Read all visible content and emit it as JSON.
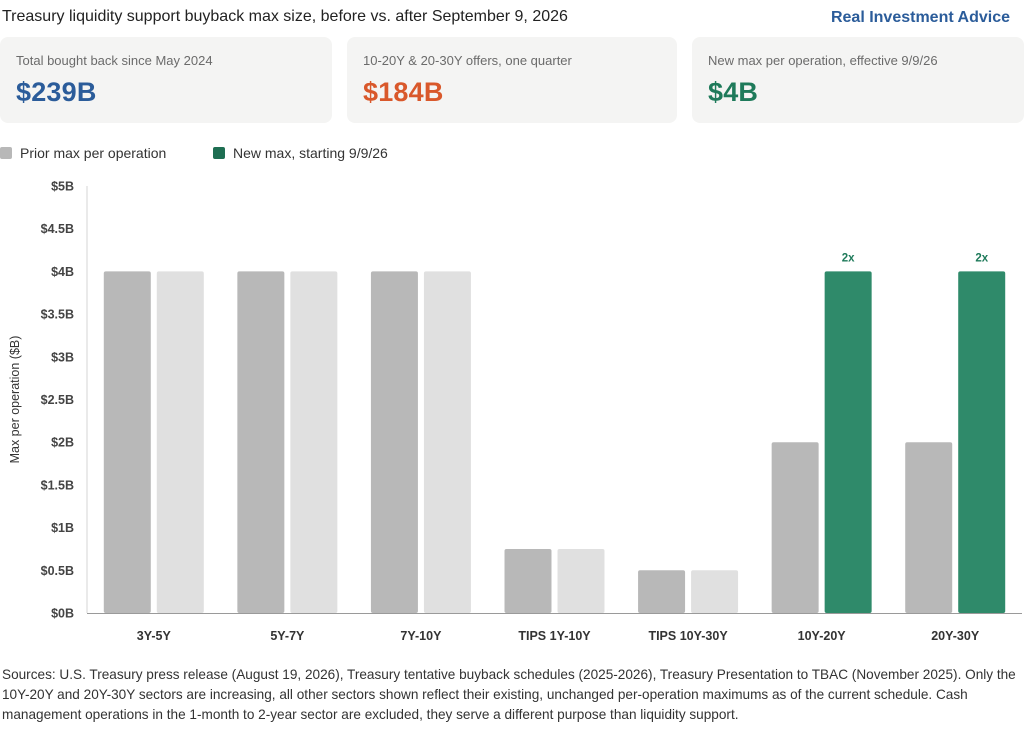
{
  "header": {
    "title": "Treasury liquidity support buyback max size, before vs. after September 9, 2026",
    "brand": "Real Investment Advice"
  },
  "cards": [
    {
      "label": "Total bought back since May 2024",
      "value": "$239B",
      "color": "#2b5c9a"
    },
    {
      "label": "10-20Y & 20-30Y offers, one quarter",
      "value": "$184B",
      "color": "#d9582b"
    },
    {
      "label": "New max per operation, effective 9/9/26",
      "value": "$4B",
      "color": "#1e7a5a"
    }
  ],
  "colors": {
    "prior": "#b8b8b8",
    "new_unchanged": "#e0e0e0",
    "new_increased": "#2f8a6a",
    "legend_new": "#1e6e52",
    "annotation": "#1e7a5a"
  },
  "chart_data": {
    "type": "bar",
    "title": "",
    "xlabel": "",
    "ylabel": "Max per operation ($B)",
    "ylim": [
      0,
      5
    ],
    "yticks": [
      0,
      0.5,
      1,
      1.5,
      2,
      2.5,
      3,
      3.5,
      4,
      4.5,
      5
    ],
    "ytick_labels": [
      "$0B",
      "$0.5B",
      "$1B",
      "$1.5B",
      "$2B",
      "$2.5B",
      "$3B",
      "$3.5B",
      "$4B",
      "$4.5B",
      "$5B"
    ],
    "categories": [
      "3Y-5Y",
      "5Y-7Y",
      "7Y-10Y",
      "TIPS 1Y-10Y",
      "TIPS 10Y-30Y",
      "10Y-20Y",
      "20Y-30Y"
    ],
    "series": [
      {
        "name": "Prior max per operation",
        "values": [
          4,
          4,
          4,
          0.75,
          0.5,
          2,
          2
        ]
      },
      {
        "name": "New max, starting 9/9/26",
        "values": [
          4,
          4,
          4,
          0.75,
          0.5,
          4,
          4
        ]
      }
    ],
    "annotations": [
      {
        "category": "10Y-20Y",
        "series": "New max, starting 9/9/26",
        "text": "2x"
      },
      {
        "category": "20Y-30Y",
        "series": "New max, starting 9/9/26",
        "text": "2x"
      }
    ],
    "grid": false,
    "legend": "top-left"
  },
  "sources": "Sources: U.S. Treasury press release (August 19, 2026), Treasury tentative buyback schedules (2025-2026), Treasury Presentation to TBAC (November 2025). Only the 10Y-20Y and 20Y-30Y sectors are increasing, all other sectors shown reflect their existing, unchanged per-operation maximums as of the current schedule. Cash management operations in the 1-month to 2-year sector are excluded, they serve a different purpose than liquidity support."
}
